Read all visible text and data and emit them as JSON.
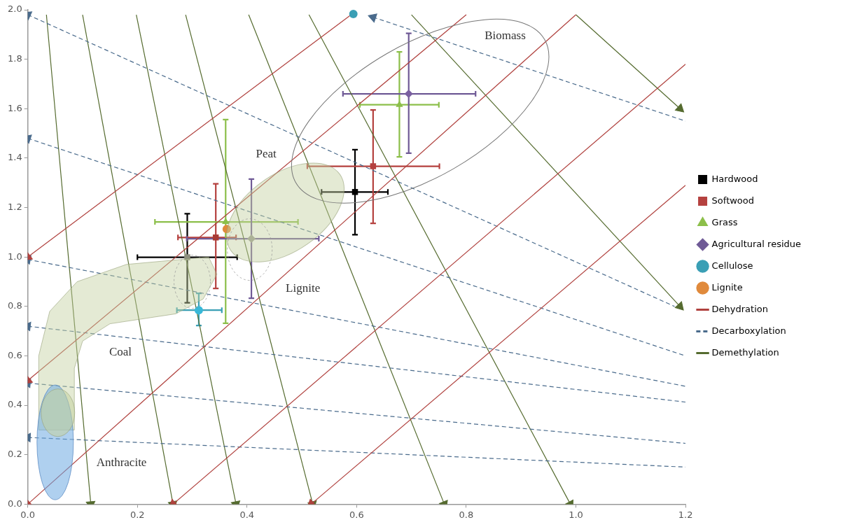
{
  "chart_data": {
    "type": "scatter",
    "xlim": [
      0,
      1.2
    ],
    "xticks": [
      {
        "value": 0,
        "label": "0.0"
      },
      0.2,
      0.4,
      0.6,
      0.8,
      {
        "value": 1,
        "label": "1.0"
      },
      1.2
    ],
    "ylim": [
      0,
      2
    ],
    "yticks": [
      {
        "value": 0,
        "label": "0.0"
      },
      0.2,
      0.4,
      0.6,
      0.8,
      {
        "value": 1,
        "label": "1.0"
      },
      1.2,
      1.4,
      1.6,
      1.8,
      {
        "value": 2,
        "label": "2.0"
      }
    ],
    "legend": "right",
    "series": [
      {
        "name": "Hardwood",
        "marker": "square",
        "color": "#000000",
        "colors": [
          "#000000",
          "#8c8f7c"
        ],
        "x": [
          0.597,
          0.291
        ],
        "values": [
          1.263,
          0.999
        ],
        "xerrors": [
          [
            0.536,
            0.657
          ],
          [
            0.2,
            0.382
          ]
        ],
        "errors": [
          [
            1.09,
            1.434
          ],
          [
            0.815,
            1.175
          ]
        ]
      },
      {
        "name": "Softwood",
        "marker": "square",
        "color": "#b5413f",
        "colors": [
          "#b5413f",
          "#a83a34"
        ],
        "x": [
          0.63,
          0.343
        ],
        "values": [
          1.367,
          1.079
        ],
        "xerrors": [
          [
            0.51,
            0.751
          ],
          [
            0.274,
            0.38
          ]
        ],
        "errors": [
          [
            1.136,
            1.595
          ],
          [
            0.873,
            1.296
          ]
        ]
      },
      {
        "name": "Grass",
        "marker": "triangle",
        "color": "#8cbf4a",
        "colors": [
          "#8cbf4a",
          "#8cbf4a"
        ],
        "x": [
          0.678,
          0.361
        ],
        "values": [
          1.616,
          1.142
        ],
        "xerrors": [
          [
            0.606,
            0.75
          ],
          [
            0.232,
            0.493
          ]
        ],
        "errors": [
          [
            1.405,
            1.83
          ],
          [
            0.732,
            1.556
          ]
        ]
      },
      {
        "name": "Agricultural residue",
        "marker": "diamond",
        "color": "#6f5a96",
        "colors": [
          "#7a60a0",
          "#9a9a90"
        ],
        "x": [
          0.695,
          0.408
        ],
        "values": [
          1.66,
          1.074
        ],
        "xerrors": [
          [
            0.575,
            0.817
          ],
          [
            0.29,
            0.531
          ]
        ],
        "errors": [
          [
            1.42,
            1.905
          ],
          [
            0.833,
            1.315
          ]
        ]
      },
      {
        "name": "Cellulose",
        "marker": "circle",
        "color": "#3a9fb5",
        "colors": [
          "#3a9fb5",
          "#38b8d8"
        ],
        "x": [
          0.594,
          0.312
        ],
        "values": [
          1.983,
          0.785
        ],
        "xerrors": [
          null,
          [
            0.272,
            0.354
          ]
        ],
        "errors": [
          null,
          [
            0.723,
            0.853
          ]
        ]
      },
      {
        "name": "Lignite",
        "marker": "circle",
        "color": "#e08a3c",
        "x": [
          0.363
        ],
        "values": [
          1.113
        ]
      },
      {
        "name": "Dehydration",
        "type": "line",
        "marker": "triangle",
        "line_style": "solid",
        "color": "#b0413e",
        "x": [
          0,
          1.0
        ],
        "values": [
          0,
          1.98
        ]
      },
      {
        "type": "line",
        "marker": "triangle",
        "line_style": "solid",
        "color": "#b0413e",
        "x": [
          0.265,
          1.2
        ],
        "values": [
          0,
          1.78
        ]
      },
      {
        "type": "line",
        "marker": "triangle",
        "line_style": "solid",
        "color": "#b0413e",
        "x": [
          0.517,
          1.2
        ],
        "values": [
          0,
          1.29
        ]
      },
      {
        "type": "line",
        "marker": "triangle",
        "line_style": "solid",
        "color": "#b0413e",
        "x": [
          0,
          0.8
        ],
        "values": [
          0.5,
          1.98
        ]
      },
      {
        "type": "line",
        "marker": "triangle",
        "line_style": "solid",
        "color": "#b0413e",
        "x": [
          0,
          0.59
        ],
        "values": [
          1.0,
          1.98
        ]
      },
      {
        "name": "Decarboxylation",
        "type": "line",
        "marker": "triangle",
        "line_style": "dashed",
        "color": "#4a6b8c",
        "x": [
          0,
          1.18
        ],
        "values": [
          1.98,
          0.8
        ]
      },
      {
        "type": "line",
        "marker": "triangle",
        "line_style": "dashed",
        "color": "#4a6b8c",
        "x": [
          0,
          1.2
        ],
        "values": [
          1.48,
          0.6
        ]
      },
      {
        "type": "line",
        "marker": "triangle",
        "line_style": "dashed",
        "color": "#4a6b8c",
        "x": [
          0,
          1.2
        ],
        "values": [
          0.99,
          0.477
        ]
      },
      {
        "type": "line",
        "marker": "triangle",
        "line_style": "dashed",
        "color": "#4a6b8c",
        "x": [
          0,
          1.2
        ],
        "values": [
          0.72,
          0.413
        ]
      },
      {
        "type": "line",
        "marker": "triangle",
        "line_style": "dashed",
        "color": "#4a6b8c",
        "x": [
          0,
          1.2
        ],
        "values": [
          0.49,
          0.246
        ]
      },
      {
        "type": "line",
        "marker": "triangle",
        "line_style": "dashed",
        "color": "#4a6b8c",
        "x": [
          0,
          1.2
        ],
        "values": [
          0.27,
          0.15
        ]
      },
      {
        "type": "line",
        "marker": "triangle",
        "line_style": "dashed",
        "color": "#4a6b8c",
        "x": [
          0.63,
          1.2
        ],
        "values": [
          1.97,
          1.55
        ]
      },
      {
        "name": "Demethylation",
        "type": "line",
        "marker": "triangle",
        "line_style": "solid",
        "color": "#556b2f",
        "x": [
          0.115,
          0.034
        ],
        "values": [
          0,
          1.98
        ]
      },
      {
        "type": "line",
        "marker": "triangle",
        "line_style": "solid",
        "color": "#556b2f",
        "x": [
          0.265,
          0.1
        ],
        "values": [
          0,
          1.98
        ]
      },
      {
        "type": "line",
        "marker": "triangle",
        "line_style": "solid",
        "color": "#556b2f",
        "x": [
          0.38,
          0.198
        ],
        "values": [
          0,
          1.98
        ]
      },
      {
        "type": "line",
        "marker": "triangle",
        "line_style": "solid",
        "color": "#556b2f",
        "x": [
          0.52,
          0.288
        ],
        "values": [
          0,
          1.98
        ]
      },
      {
        "type": "line",
        "marker": "triangle",
        "line_style": "solid",
        "color": "#556b2f",
        "x": [
          0.76,
          0.403
        ],
        "values": [
          0,
          1.98
        ]
      },
      {
        "type": "line",
        "marker": "triangle",
        "line_style": "solid",
        "color": "#556b2f",
        "x": [
          0.99,
          0.513
        ],
        "values": [
          0,
          1.98
        ]
      },
      {
        "type": "line",
        "marker": "triangle",
        "line_style": "solid",
        "color": "#556b2f",
        "x": [
          1.19,
          0.7
        ],
        "values": [
          0.8,
          1.98
        ]
      },
      {
        "type": "line",
        "marker": "triangle",
        "line_style": "solid",
        "color": "#556b2f",
        "x": [
          1.19,
          1.0
        ],
        "values": [
          1.6,
          1.98
        ]
      }
    ],
    "annotations": [
      "Biomass",
      "Peat",
      "Lignite",
      "Coal",
      "Anthracite"
    ]
  }
}
